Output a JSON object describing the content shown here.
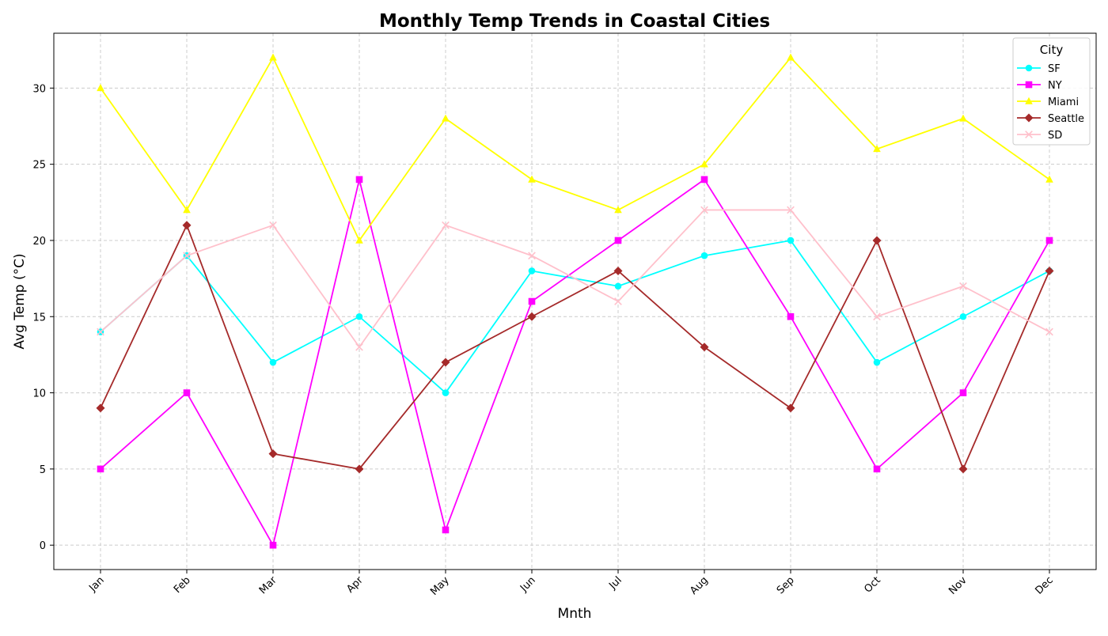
{
  "chart_data": {
    "type": "line",
    "title": "Monthly Temp Trends in Coastal Cities",
    "xlabel": "Mnth",
    "ylabel": "Avg Temp (°C)",
    "categories": [
      "Jan",
      "Feb",
      "Mar",
      "Apr",
      "May",
      "Jun",
      "Jul",
      "Aug",
      "Sep",
      "Oct",
      "Nov",
      "Dec"
    ],
    "ylim": [
      -1.6,
      33.6
    ],
    "yticks": [
      0,
      5,
      10,
      15,
      20,
      25,
      30
    ],
    "grid": true,
    "legend": {
      "title": "City",
      "placement": "top-right"
    },
    "series": [
      {
        "name": "SF",
        "color": "#00ffff",
        "marker": "circle",
        "values": [
          14,
          19,
          12,
          15,
          10,
          18,
          17,
          19,
          20,
          12,
          15,
          18
        ]
      },
      {
        "name": "NY",
        "color": "#ff00ff",
        "marker": "square",
        "values": [
          5,
          10,
          0,
          24,
          1,
          16,
          20,
          24,
          15,
          5,
          10,
          20
        ]
      },
      {
        "name": "Miami",
        "color": "#ffff00",
        "marker": "triangle",
        "values": [
          30,
          22,
          32,
          20,
          28,
          24,
          22,
          25,
          32,
          26,
          28,
          24
        ]
      },
      {
        "name": "Seattle",
        "color": "#a52a2a",
        "marker": "diamond",
        "values": [
          9,
          21,
          6,
          5,
          12,
          15,
          18,
          13,
          9,
          20,
          5,
          18
        ]
      },
      {
        "name": "SD",
        "color": "#ffc0cb",
        "marker": "x",
        "values": [
          14,
          19,
          21,
          13,
          21,
          19,
          16,
          22,
          22,
          15,
          17,
          14
        ]
      }
    ]
  }
}
